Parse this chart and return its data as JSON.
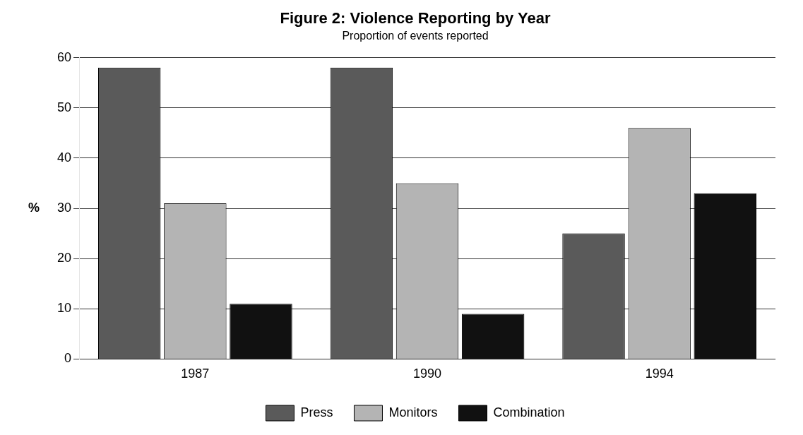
{
  "chart_data": {
    "type": "bar",
    "title": "Figure 2: Violence Reporting by Year",
    "subtitle": "Proportion of events reported",
    "ylabel": "%",
    "categories": [
      "1987",
      "1990",
      "1994"
    ],
    "series": [
      {
        "name": "Press",
        "color": "#5a5a5a",
        "values": [
          58,
          58,
          25
        ]
      },
      {
        "name": "Monitors",
        "color": "#b4b4b4",
        "values": [
          31,
          35,
          46
        ]
      },
      {
        "name": "Combination",
        "color": "#111111",
        "values": [
          11,
          9,
          33
        ]
      }
    ],
    "ylim": [
      0,
      60
    ],
    "yticks": [
      0,
      10,
      20,
      30,
      40,
      50,
      60
    ],
    "grid": "y",
    "legend": "bottom"
  }
}
